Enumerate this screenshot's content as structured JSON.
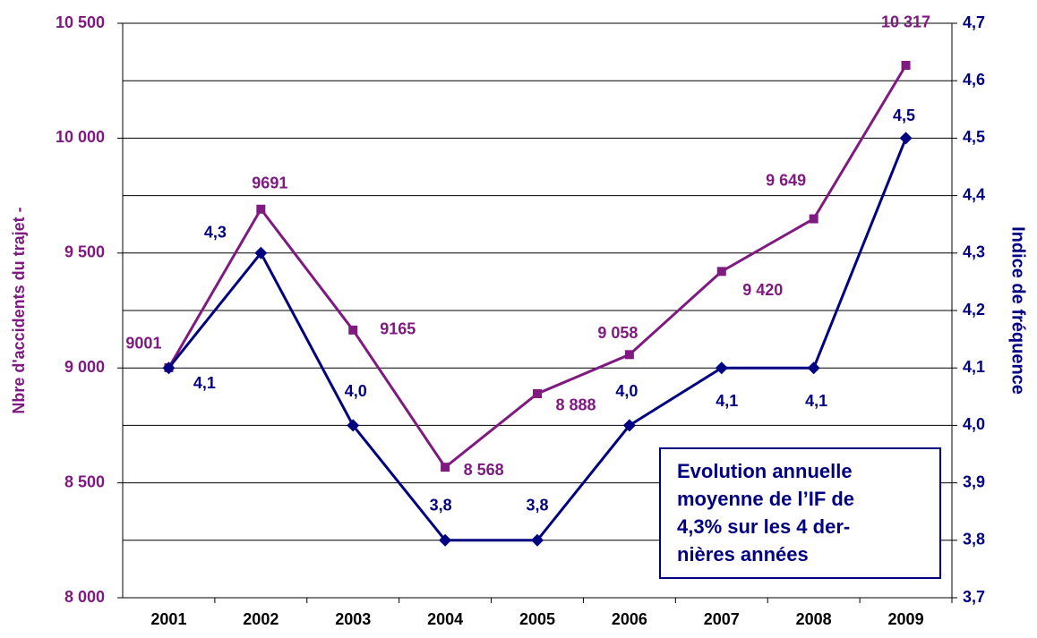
{
  "chart_data": {
    "type": "line",
    "categories": [
      "2001",
      "2002",
      "2003",
      "2004",
      "2005",
      "2006",
      "2007",
      "2008",
      "2009"
    ],
    "series": [
      {
        "name": "Nbre d'accidents du trajet",
        "color": "#7f1a80",
        "marker": "square",
        "values": [
          9001,
          9691,
          9165,
          8568,
          8888,
          9058,
          9420,
          9649,
          10317
        ],
        "value_labels": [
          "9001",
          "9691",
          "9165",
          "8 568",
          "8 888",
          "9 058",
          "9 420",
          "9 649",
          "10 317"
        ]
      },
      {
        "name": "Indice de fréquence",
        "color": "#000080",
        "marker": "diamond",
        "axis": "y2",
        "values": [
          4.1,
          4.3,
          4.0,
          3.8,
          3.8,
          4.0,
          4.1,
          4.1,
          4.5
        ],
        "value_labels": [
          "4,1",
          "4,3",
          "4,0",
          "3,8",
          "3,8",
          "4,0",
          "4,1",
          "4,1",
          "4,5"
        ]
      }
    ],
    "ylabel": "Nbre d'accidents du trajet -",
    "y2label": "Indice de fréquence",
    "ylim": [
      8000,
      10500
    ],
    "yticks": [
      {
        "value": 8000,
        "label": "8 000"
      },
      {
        "value": 8500,
        "label": "8 500"
      },
      {
        "value": 9000,
        "label": "9 000"
      },
      {
        "value": 9500,
        "label": "9 500"
      },
      {
        "value": 10000,
        "label": "10 000"
      },
      {
        "value": 10500,
        "label": "10 500"
      }
    ],
    "y2lim": [
      3.7,
      4.7
    ],
    "y2ticks": [
      {
        "value": 3.7,
        "label": "3,7"
      },
      {
        "value": 3.8,
        "label": "3,8"
      },
      {
        "value": 3.9,
        "label": "3,9"
      },
      {
        "value": 4.0,
        "label": "4,0"
      },
      {
        "value": 4.1,
        "label": "4,1"
      },
      {
        "value": 4.2,
        "label": "4,2"
      },
      {
        "value": 4.3,
        "label": "4,3"
      },
      {
        "value": 4.4,
        "label": "4,4"
      },
      {
        "value": 4.5,
        "label": "4,5"
      },
      {
        "value": 4.6,
        "label": "4,6"
      },
      {
        "value": 4.7,
        "label": "4,7"
      }
    ],
    "grid": true,
    "annotation": [
      "Evolution annuelle",
      "moyenne de l’IF de",
      "4,3% sur les 4 der-",
      "nières années"
    ]
  }
}
